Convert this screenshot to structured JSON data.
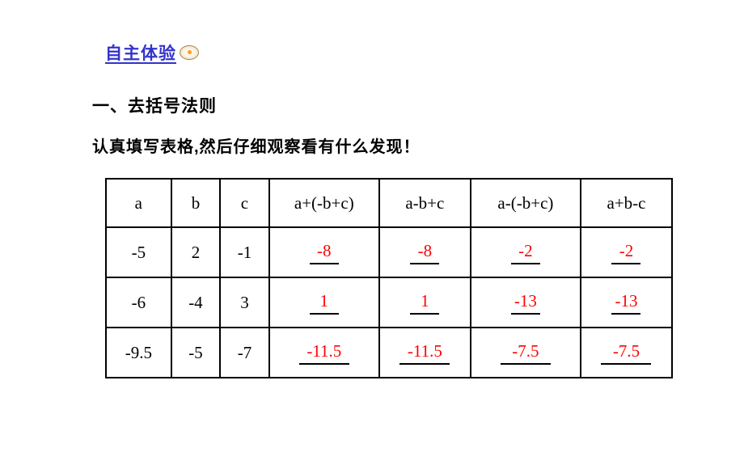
{
  "header": {
    "link_text": "自主体验"
  },
  "section_title": "一、去括号法则",
  "instruction": "认真填写表格,然后仔细观察看有什么发现！",
  "table": {
    "headers": {
      "col_a": "a",
      "col_b": "b",
      "col_c": "c",
      "col_e1": "a+(-b+c)",
      "col_e2": "a-b+c",
      "col_e3": "a-(-b+c)",
      "col_e4": "a+b-c"
    },
    "rows": [
      {
        "a": "-5",
        "b": "2",
        "c": "-1",
        "e1": "-8",
        "e2": "-8",
        "e3": "-2",
        "e4": "-2"
      },
      {
        "a": "-6",
        "b": "-4",
        "c": "3",
        "e1": "1",
        "e2": "1",
        "e3": "-13",
        "e4": "-13"
      },
      {
        "a": "-9.5",
        "b": "-5",
        "c": "-7",
        "e1": "-11.5",
        "e2": "-11.5",
        "e3": "-7.5",
        "e4": "-7.5"
      }
    ]
  },
  "colors": {
    "link_color": "#3333cc",
    "text_color": "#000000",
    "fill_color": "#ff0000",
    "border_color": "#000000",
    "background_color": "#ffffff"
  }
}
